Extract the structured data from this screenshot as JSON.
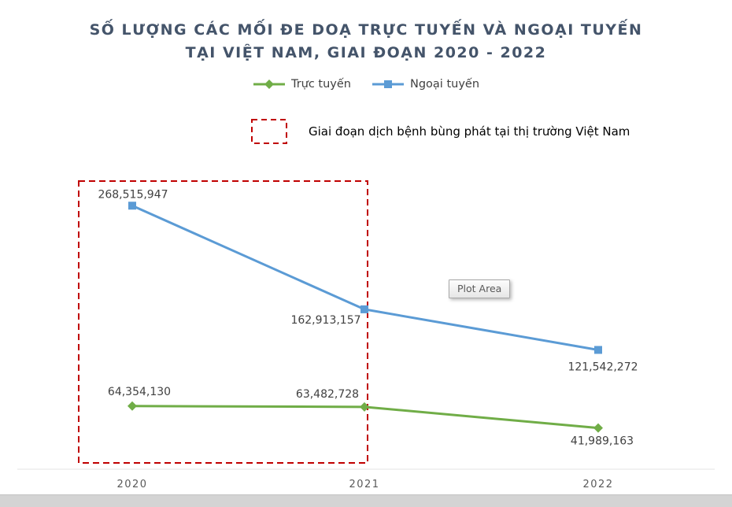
{
  "title": {
    "line1": "SỐ LƯỢNG CÁC MỐI ĐE DOẠ TRỰC TUYẾN VÀ NGOẠI TUYẾN",
    "line2": "TẠI VIỆT NAM, GIAI ĐOẠN 2020 - 2022"
  },
  "legend": {
    "items": [
      {
        "label": "Trực tuyến",
        "color": "#70AD47",
        "marker": "diamond"
      },
      {
        "label": "Ngoại tuyến",
        "color": "#5B9BD5",
        "marker": "square"
      }
    ]
  },
  "annotation": {
    "label": "Giai đoạn dịch bệnh bùng phát tại thị trường Việt Nam",
    "box_color": "#C00000"
  },
  "tooltip": {
    "label": "Plot Area"
  },
  "axis": {
    "x_labels": [
      "2020",
      "2021",
      "2022"
    ],
    "label_color": "#595959"
  },
  "colors": {
    "title": "#44546A",
    "data_label": "#404040",
    "green_series": "#70AD47",
    "blue_series": "#5B9BD5",
    "highlight_red": "#C00000"
  },
  "chart_data": {
    "type": "line",
    "title": "SỐ LƯỢNG CÁC MỐI ĐE DOẠ TRỰC TUYẾN VÀ NGOẠI TUYẾN TẠI VIỆT NAM, GIAI ĐOẠN 2020 - 2022",
    "categories": [
      "2020",
      "2021",
      "2022"
    ],
    "series": [
      {
        "name": "Trực tuyến",
        "id": "truc-tuyen",
        "color": "#70AD47",
        "marker": "diamond",
        "values": [
          64354130,
          63482728,
          41989163
        ],
        "labels": [
          "64,354,130",
          "63,482,728",
          "41,989,163"
        ]
      },
      {
        "name": "Ngoại tuyến",
        "id": "ngoai-tuyen",
        "color": "#5B9BD5",
        "marker": "square",
        "values": [
          268515947,
          162913157,
          121542272
        ],
        "labels": [
          "268,515,947",
          "162,913,157",
          "121,542,272"
        ]
      }
    ],
    "xlabel": "",
    "ylabel": "",
    "ylim": [
      0,
      300000000
    ],
    "grid": false,
    "legend_position": "top",
    "annotation_region": "dashed red rectangle highlighting 2020–2021 (disease outbreak period in Vietnam market)"
  }
}
